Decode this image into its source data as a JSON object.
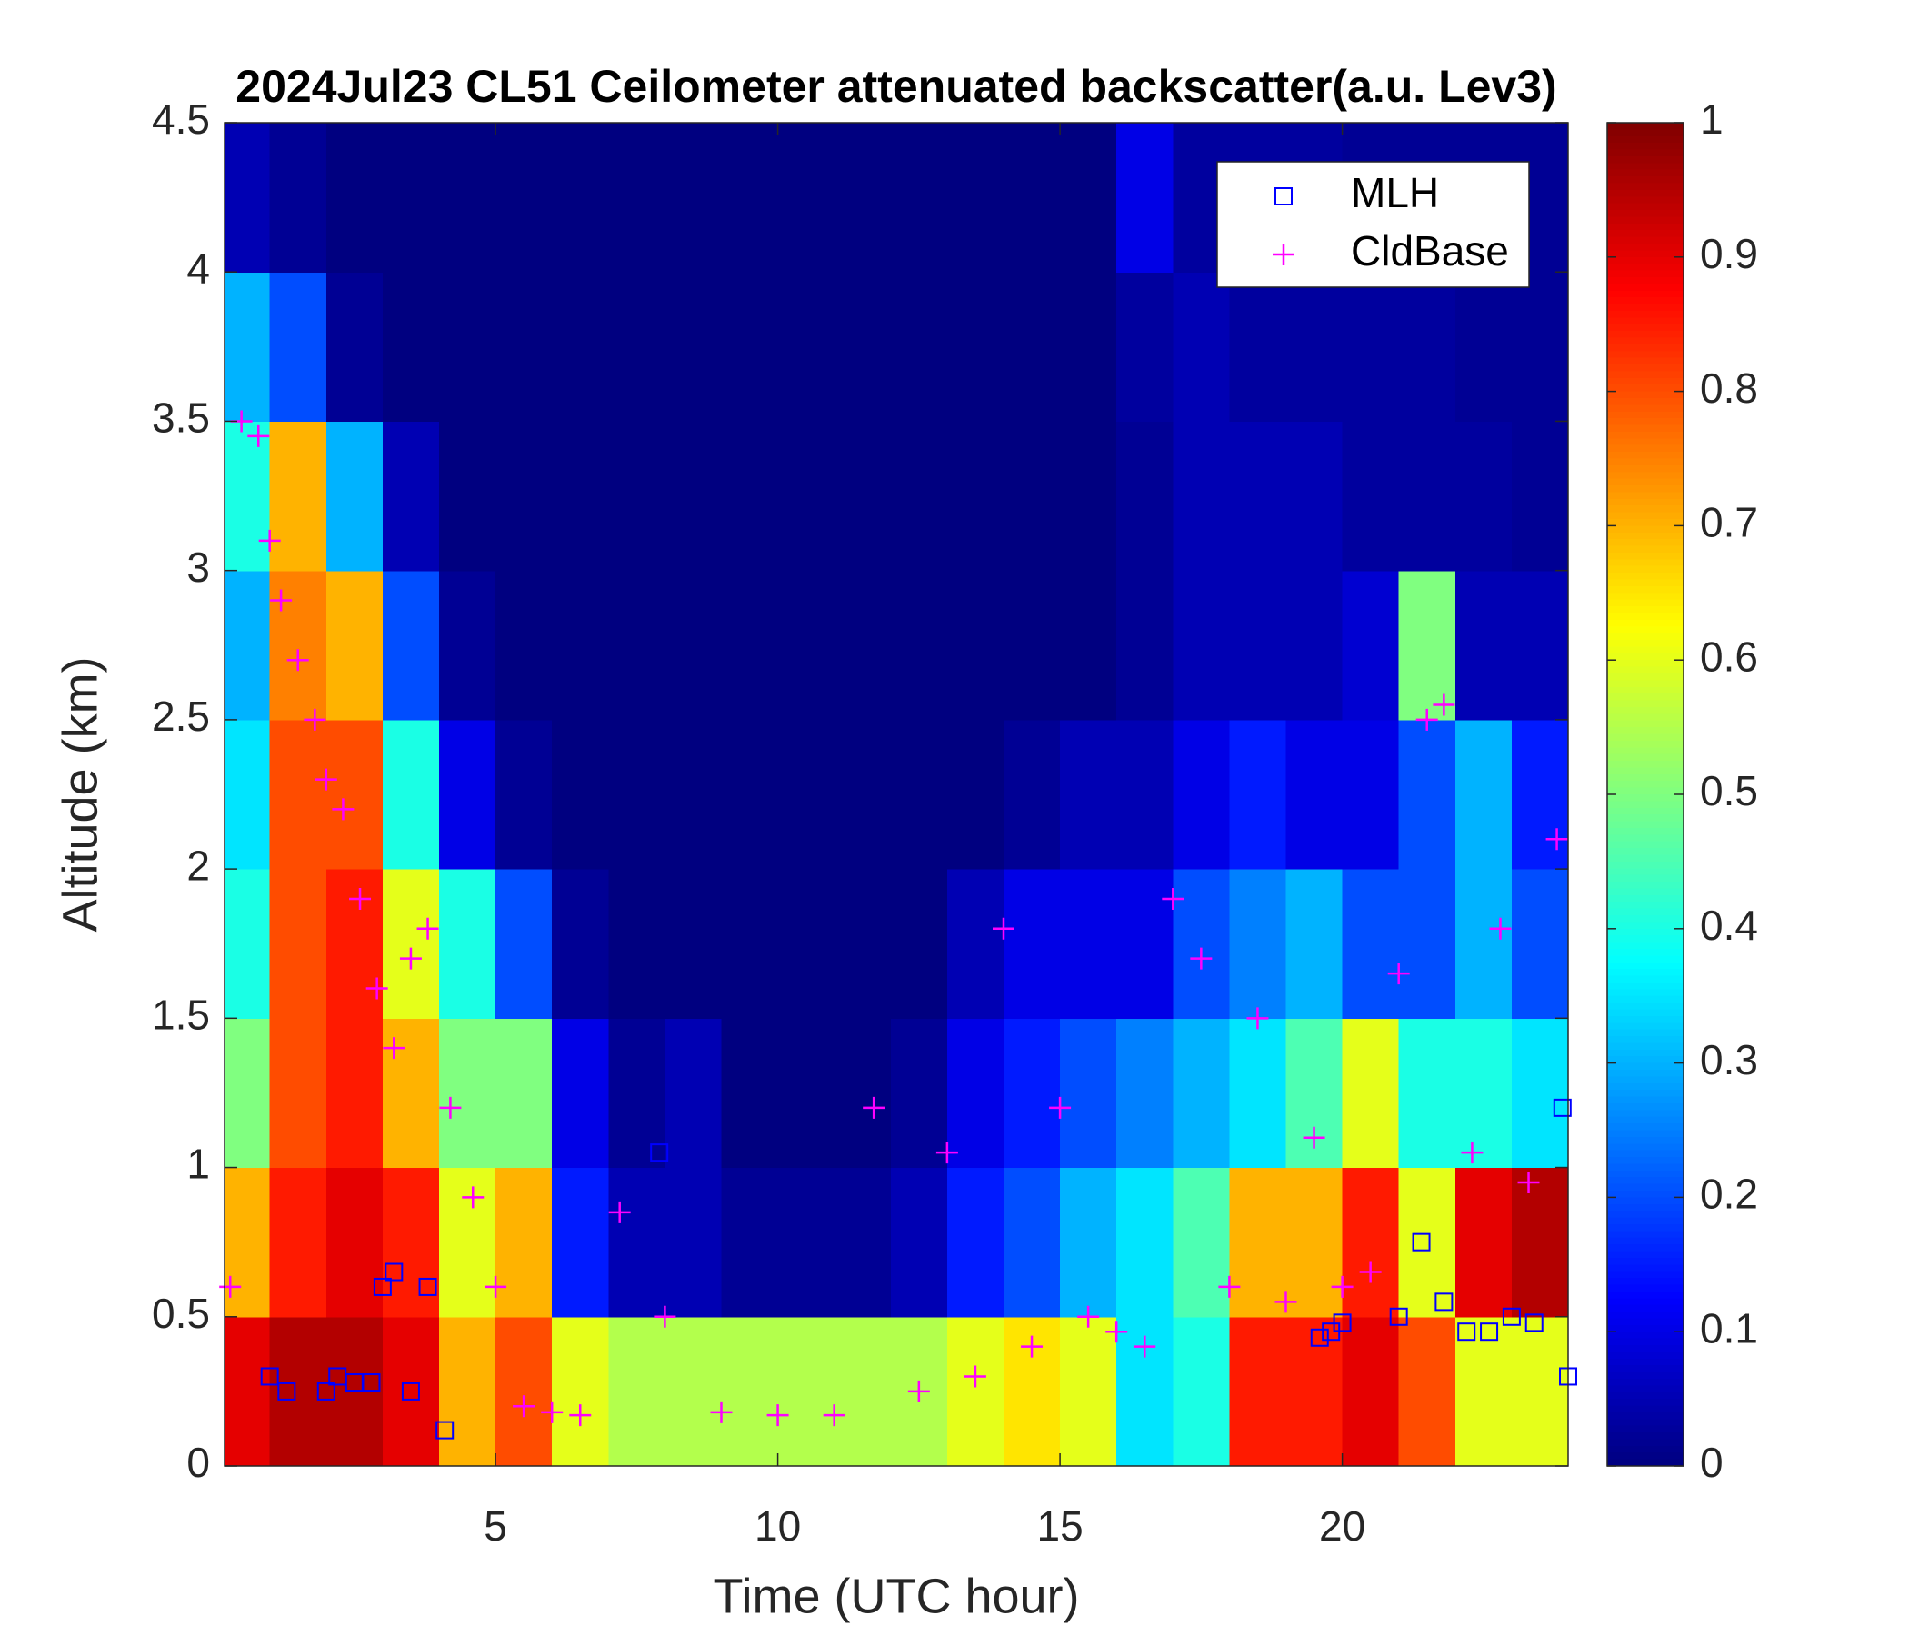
{
  "chart_data": {
    "type": "heatmap",
    "title": "2024Jul23 CL51 Ceilometer attenuated backscatter(a.u. Lev3)",
    "x_label": "Time (UTC hour)",
    "y_label": "Altitude (km)",
    "xlim": [
      0.2,
      24
    ],
    "xticks": [
      5,
      10,
      15,
      20
    ],
    "ylim": [
      0,
      4.5
    ],
    "yticks": [
      0,
      0.5,
      1,
      1.5,
      2,
      2.5,
      3,
      3.5,
      4,
      4.5
    ],
    "clim": [
      0,
      1
    ],
    "cticks": [
      0,
      0.1,
      0.2,
      0.3,
      0.4,
      0.5,
      0.6,
      0.7,
      0.8,
      0.9,
      1
    ],
    "colormap": "jet",
    "legend": "upper right",
    "x": [
      0.5,
      1.5,
      2.5,
      3.5,
      4.5,
      5.5,
      6.5,
      7.5,
      8.5,
      9.5,
      10.5,
      11.5,
      12.5,
      13.5,
      14.5,
      15.5,
      16.5,
      17.5,
      18.5,
      19.5,
      20.5,
      21.5,
      22.5,
      23.5
    ],
    "y": [
      0.25,
      0.75,
      1.25,
      1.75,
      2.25,
      2.75,
      3.25,
      3.75,
      4.25
    ],
    "z": [
      [
        0.9,
        0.95,
        0.95,
        0.9,
        0.7,
        0.8,
        0.6,
        0.55,
        0.55,
        0.55,
        0.55,
        0.55,
        0.55,
        0.6,
        0.65,
        0.6,
        0.35,
        0.4,
        0.85,
        0.85,
        0.9,
        0.8,
        0.6,
        0.6
      ],
      [
        0.7,
        0.85,
        0.9,
        0.85,
        0.6,
        0.7,
        0.15,
        0.05,
        0.05,
        0.02,
        0.02,
        0.02,
        0.05,
        0.15,
        0.2,
        0.3,
        0.35,
        0.45,
        0.7,
        0.7,
        0.85,
        0.6,
        0.9,
        0.95
      ],
      [
        0.5,
        0.8,
        0.85,
        0.7,
        0.5,
        0.5,
        0.1,
        0.02,
        0.05,
        0,
        0,
        0,
        0.02,
        0.1,
        0.15,
        0.2,
        0.25,
        0.3,
        0.35,
        0.45,
        0.6,
        0.4,
        0.4,
        0.35
      ],
      [
        0.4,
        0.8,
        0.85,
        0.6,
        0.4,
        0.2,
        0.02,
        0,
        0,
        0,
        0,
        0,
        0,
        0.05,
        0.1,
        0.1,
        0.1,
        0.2,
        0.25,
        0.3,
        0.2,
        0.2,
        0.3,
        0.2
      ],
      [
        0.35,
        0.8,
        0.8,
        0.4,
        0.1,
        0.02,
        0,
        0,
        0,
        0,
        0,
        0,
        0,
        0,
        0.02,
        0.05,
        0.05,
        0.1,
        0.15,
        0.1,
        0.1,
        0.2,
        0.3,
        0.15
      ],
      [
        0.3,
        0.75,
        0.7,
        0.2,
        0.02,
        0,
        0,
        0,
        0,
        0,
        0,
        0,
        0,
        0,
        0,
        0,
        0.02,
        0.05,
        0.05,
        0.05,
        0.08,
        0.5,
        0.05,
        0.05
      ],
      [
        0.4,
        0.7,
        0.3,
        0.05,
        0,
        0,
        0,
        0,
        0,
        0,
        0,
        0,
        0,
        0,
        0,
        0,
        0.02,
        0.05,
        0.05,
        0.05,
        0.03,
        0.03,
        0.03,
        0.02
      ],
      [
        0.3,
        0.2,
        0.02,
        0,
        0,
        0,
        0,
        0,
        0,
        0,
        0,
        0,
        0,
        0,
        0,
        0,
        0.03,
        0.05,
        0.03,
        0.03,
        0.03,
        0.03,
        0.02,
        0.02
      ],
      [
        0.05,
        0.02,
        0,
        0,
        0,
        0,
        0,
        0,
        0,
        0,
        0,
        0,
        0,
        0,
        0,
        0,
        0.1,
        0.03,
        0.03,
        0.03,
        0.02,
        0.02,
        0.02,
        0.02
      ]
    ],
    "series": [
      {
        "name": "MLH",
        "color": "#0000ff",
        "marker": "square",
        "x": [
          1.0,
          1.3,
          2.0,
          2.2,
          2.5,
          2.8,
          3.0,
          3.2,
          3.5,
          3.8,
          4.1,
          7.9,
          19.6,
          19.8,
          20.0,
          21.0,
          21.4,
          21.8,
          22.2,
          22.6,
          23.0,
          23.4,
          23.9,
          24.0
        ],
        "values": [
          0.3,
          0.25,
          0.25,
          0.3,
          0.28,
          0.28,
          0.6,
          0.65,
          0.25,
          0.6,
          0.12,
          1.05,
          0.43,
          0.45,
          0.48,
          0.5,
          0.75,
          0.55,
          0.45,
          0.45,
          0.5,
          0.48,
          1.2,
          0.3
        ]
      },
      {
        "name": "CldBase",
        "color": "#ff00ff",
        "marker": "plus",
        "x": [
          0.3,
          0.5,
          0.8,
          1.0,
          1.2,
          1.5,
          1.8,
          2.0,
          2.3,
          2.6,
          2.9,
          3.2,
          3.5,
          3.8,
          4.2,
          4.6,
          5.0,
          5.5,
          6.0,
          6.5,
          7.2,
          8.0,
          9.0,
          10.0,
          11.0,
          11.7,
          12.5,
          13.0,
          13.5,
          14.0,
          14.5,
          15.0,
          15.5,
          16.0,
          16.5,
          17.0,
          17.5,
          18.0,
          18.5,
          19.0,
          19.5,
          20.0,
          20.5,
          21.0,
          21.5,
          21.8,
          22.3,
          22.8,
          23.3,
          23.8
        ],
        "values": [
          0.6,
          3.5,
          3.45,
          3.1,
          2.9,
          2.7,
          2.5,
          2.3,
          2.2,
          1.9,
          1.6,
          1.4,
          1.7,
          1.8,
          1.2,
          0.9,
          0.6,
          0.2,
          0.18,
          0.17,
          0.85,
          0.5,
          0.18,
          0.17,
          0.17,
          1.2,
          0.25,
          1.05,
          0.3,
          1.8,
          0.4,
          1.2,
          0.5,
          0.45,
          0.4,
          1.9,
          1.7,
          0.6,
          1.5,
          0.55,
          1.1,
          0.6,
          0.65,
          1.65,
          2.5,
          2.55,
          1.05,
          1.8,
          0.95,
          2.1
        ]
      }
    ]
  }
}
